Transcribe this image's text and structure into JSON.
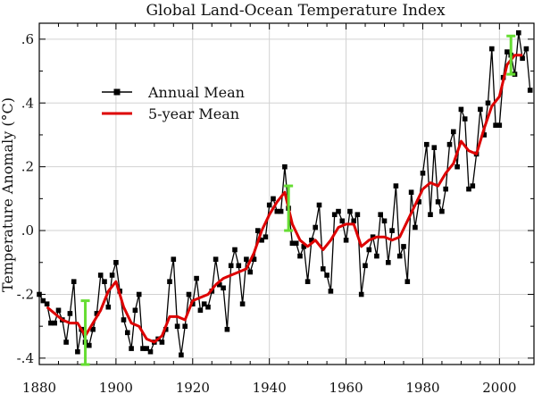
{
  "chart_data": {
    "type": "line",
    "title": "Global Land-Ocean Temperature Index",
    "xlabel": "",
    "ylabel": "Temperature Anomaly (°C)",
    "xlim": [
      1880,
      2009
    ],
    "ylim": [
      -0.42,
      0.65
    ],
    "x_ticks": [
      1880,
      1900,
      1920,
      1940,
      1960,
      1980,
      2000
    ],
    "x_tick_labels": [
      "1880",
      "1900",
      "1920",
      "1940",
      "1960",
      "1980",
      "2000"
    ],
    "y_ticks": [
      -0.4,
      -0.2,
      0.0,
      0.2,
      0.4,
      0.6
    ],
    "y_tick_labels": [
      "-.4",
      "-.2",
      ".0",
      ".2",
      ".4",
      ".6"
    ],
    "grid": true,
    "legend_position": "top-left",
    "series": [
      {
        "name": "Annual Mean",
        "color": "#000000",
        "marker": "square",
        "x": [
          1880,
          1881,
          1882,
          1883,
          1884,
          1885,
          1886,
          1887,
          1888,
          1889,
          1890,
          1891,
          1892,
          1893,
          1894,
          1895,
          1896,
          1897,
          1898,
          1899,
          1900,
          1901,
          1902,
          1903,
          1904,
          1905,
          1906,
          1907,
          1908,
          1909,
          1910,
          1911,
          1912,
          1913,
          1914,
          1915,
          1916,
          1917,
          1918,
          1919,
          1920,
          1921,
          1922,
          1923,
          1924,
          1925,
          1926,
          1927,
          1928,
          1929,
          1930,
          1931,
          1932,
          1933,
          1934,
          1935,
          1936,
          1937,
          1938,
          1939,
          1940,
          1941,
          1942,
          1943,
          1944,
          1945,
          1946,
          1947,
          1948,
          1949,
          1950,
          1951,
          1952,
          1953,
          1954,
          1955,
          1956,
          1957,
          1958,
          1959,
          1960,
          1961,
          1962,
          1963,
          1964,
          1965,
          1966,
          1967,
          1968,
          1969,
          1970,
          1971,
          1972,
          1973,
          1974,
          1975,
          1976,
          1977,
          1978,
          1979,
          1980,
          1981,
          1982,
          1983,
          1984,
          1985,
          1986,
          1987,
          1988,
          1989,
          1990,
          1991,
          1992,
          1993,
          1994,
          1995,
          1996,
          1997,
          1998,
          1999,
          2000,
          2001,
          2002,
          2003,
          2004,
          2005,
          2006,
          2007,
          2008
        ],
        "values": [
          -0.2,
          -0.22,
          -0.23,
          -0.29,
          -0.29,
          -0.25,
          -0.28,
          -0.35,
          -0.26,
          -0.16,
          -0.38,
          -0.31,
          -0.35,
          -0.36,
          -0.31,
          -0.26,
          -0.14,
          -0.16,
          -0.24,
          -0.14,
          -0.1,
          -0.19,
          -0.28,
          -0.32,
          -0.37,
          -0.25,
          -0.2,
          -0.37,
          -0.37,
          -0.38,
          -0.35,
          -0.34,
          -0.35,
          -0.31,
          -0.16,
          -0.09,
          -0.3,
          -0.39,
          -0.3,
          -0.2,
          -0.23,
          -0.15,
          -0.25,
          -0.23,
          -0.24,
          -0.19,
          -0.09,
          -0.17,
          -0.18,
          -0.31,
          -0.11,
          -0.06,
          -0.11,
          -0.23,
          -0.09,
          -0.13,
          -0.09,
          0.0,
          -0.03,
          -0.02,
          0.08,
          0.1,
          0.06,
          0.06,
          0.2,
          0.07,
          -0.04,
          -0.04,
          -0.08,
          -0.05,
          -0.16,
          -0.03,
          0.01,
          0.08,
          -0.12,
          -0.14,
          -0.19,
          0.05,
          0.06,
          0.03,
          -0.03,
          0.06,
          0.03,
          0.05,
          -0.2,
          -0.11,
          -0.06,
          -0.02,
          -0.08,
          0.05,
          0.03,
          -0.1,
          0.0,
          0.14,
          -0.08,
          -0.05,
          -0.16,
          0.12,
          0.01,
          0.09,
          0.18,
          0.27,
          0.05,
          0.26,
          0.09,
          0.06,
          0.13,
          0.27,
          0.31,
          0.2,
          0.38,
          0.35,
          0.13,
          0.14,
          0.24,
          0.38,
          0.3,
          0.4,
          0.57,
          0.33,
          0.33,
          0.48,
          0.56,
          0.55,
          0.49,
          0.62,
          0.54,
          0.57,
          0.44
        ]
      },
      {
        "name": "5-year Mean",
        "color": "#dd0000",
        "marker": "none",
        "x": [
          1882,
          1884,
          1886,
          1888,
          1890,
          1892,
          1894,
          1896,
          1898,
          1900,
          1902,
          1904,
          1906,
          1908,
          1910,
          1912,
          1914,
          1916,
          1918,
          1920,
          1922,
          1924,
          1926,
          1928,
          1930,
          1932,
          1934,
          1936,
          1938,
          1940,
          1942,
          1944,
          1946,
          1948,
          1950,
          1952,
          1954,
          1956,
          1958,
          1960,
          1962,
          1964,
          1966,
          1968,
          1970,
          1972,
          1974,
          1976,
          1978,
          1980,
          1982,
          1984,
          1986,
          1988,
          1990,
          1992,
          1994,
          1996,
          1998,
          2000,
          2002,
          2004,
          2006
        ],
        "values": [
          -0.24,
          -0.26,
          -0.28,
          -0.29,
          -0.29,
          -0.33,
          -0.29,
          -0.25,
          -0.19,
          -0.16,
          -0.24,
          -0.29,
          -0.3,
          -0.34,
          -0.35,
          -0.33,
          -0.27,
          -0.27,
          -0.28,
          -0.22,
          -0.21,
          -0.2,
          -0.17,
          -0.15,
          -0.14,
          -0.13,
          -0.12,
          -0.07,
          0.0,
          0.05,
          0.09,
          0.12,
          0.02,
          -0.03,
          -0.05,
          -0.03,
          -0.06,
          -0.03,
          0.01,
          0.02,
          0.02,
          -0.05,
          -0.03,
          -0.02,
          -0.02,
          -0.03,
          -0.02,
          0.03,
          0.08,
          0.13,
          0.15,
          0.14,
          0.18,
          0.21,
          0.28,
          0.25,
          0.24,
          0.32,
          0.39,
          0.42,
          0.52,
          0.55,
          0.55
        ]
      }
    ],
    "error_bars": [
      {
        "x": 1892,
        "low": -0.42,
        "high": -0.22,
        "color": "#66dd33"
      },
      {
        "x": 1945,
        "low": 0.0,
        "high": 0.14,
        "color": "#66dd33"
      },
      {
        "x": 2003,
        "low": 0.49,
        "high": 0.61,
        "color": "#66dd33"
      }
    ]
  }
}
